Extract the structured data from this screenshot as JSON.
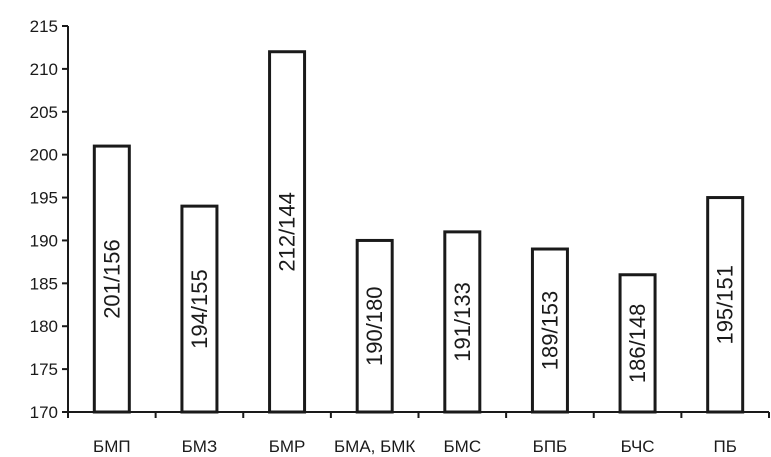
{
  "chart_data": {
    "type": "bar",
    "categories": [
      "БМП",
      "БМЗ",
      "БМР",
      "БМА, БМК",
      "БМС",
      "БПБ",
      "БЧС",
      "ПБ"
    ],
    "values": [
      201,
      194,
      212,
      190,
      191,
      189,
      186,
      195
    ],
    "bar_labels": [
      "201/156",
      "194/155",
      "212/144",
      "190/180",
      "191/133",
      "189/153",
      "186/148",
      "195/151"
    ],
    "ylim": [
      170,
      215
    ],
    "yticks": [
      170,
      175,
      180,
      185,
      190,
      195,
      200,
      205,
      210,
      215
    ],
    "grid": false,
    "legend": "none",
    "colors": {
      "bar_fill": "#ffffff",
      "bar_stroke": "#1a1a1a",
      "text": "#1a1a1a"
    }
  }
}
